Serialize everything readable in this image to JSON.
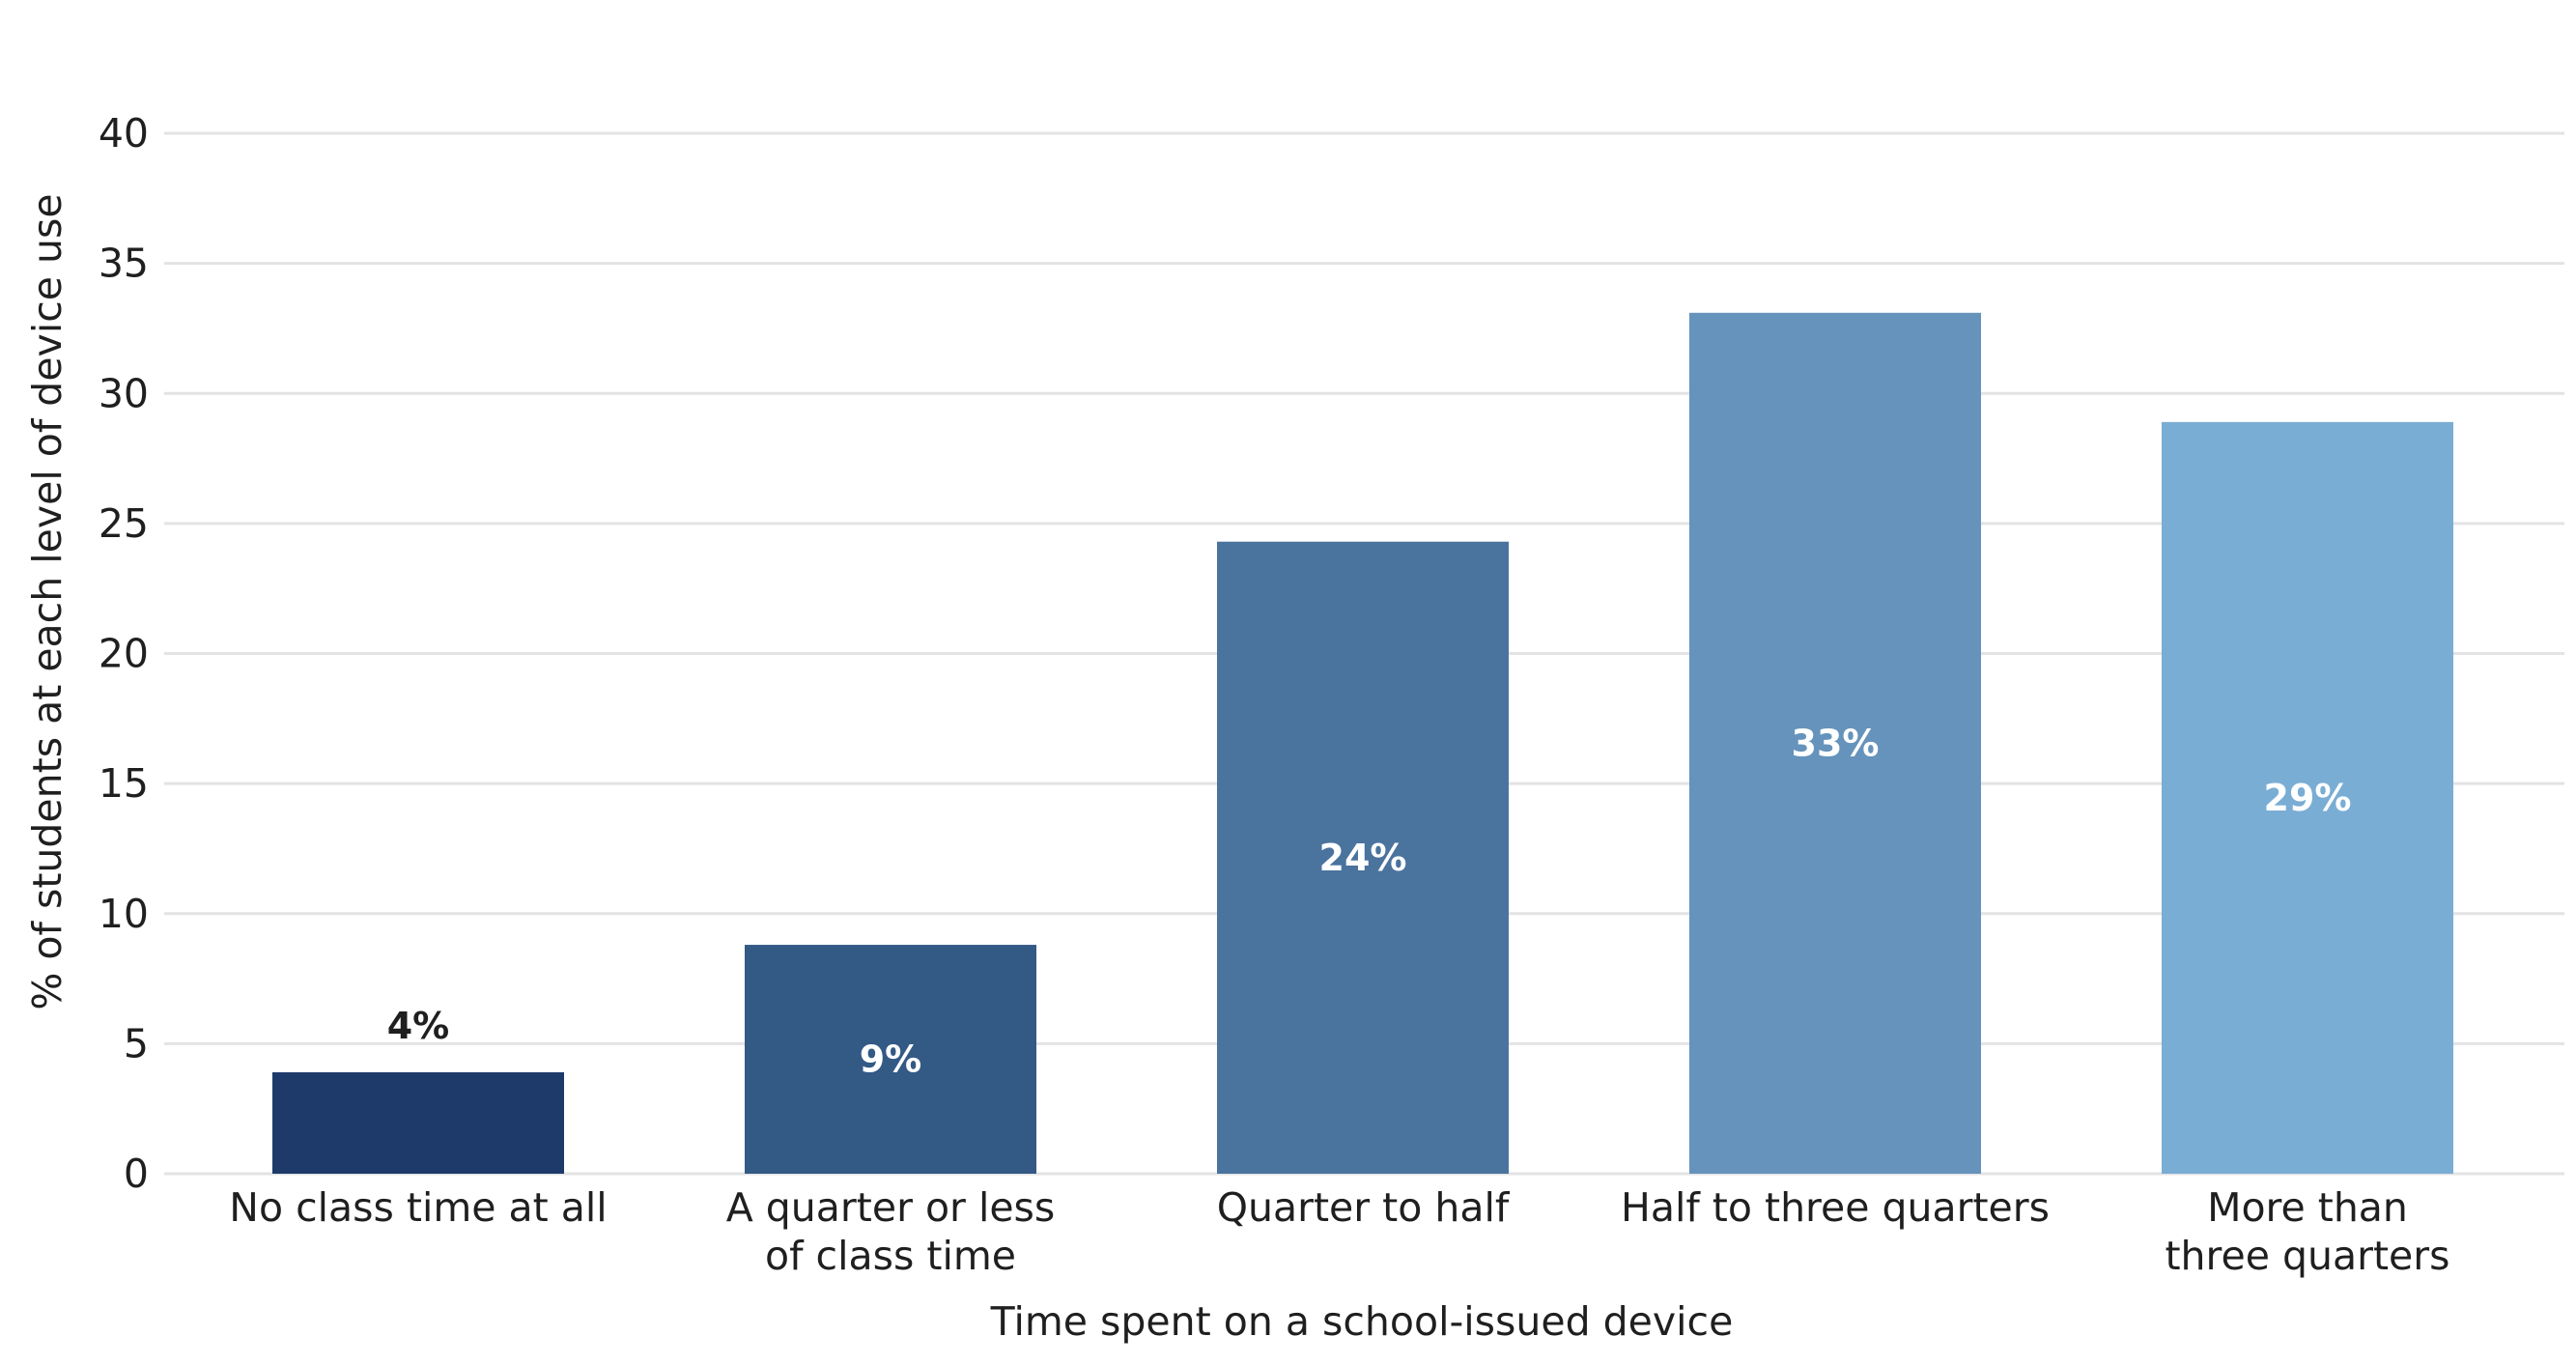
{
  "chart_data": {
    "type": "bar",
    "categories": [
      [
        "No class time at all"
      ],
      [
        "A quarter or less",
        "of class time"
      ],
      [
        "Quarter to half"
      ],
      [
        "Half to three quarters"
      ],
      [
        "More than",
        "three quarters"
      ]
    ],
    "values": [
      3.9,
      8.8,
      24.3,
      33.1,
      28.9
    ],
    "data_labels": [
      "4%",
      "9%",
      "24%",
      "33%",
      "29%"
    ],
    "bar_colors": [
      "#1e3a6b",
      "#335985",
      "#4a739e",
      "#6593bb",
      "#7aadd4"
    ],
    "data_label_colors": [
      "#1f1f1f",
      "#ffffff",
      "#ffffff",
      "#ffffff",
      "#ffffff"
    ],
    "data_label_position": [
      "above",
      "inside",
      "inside",
      "inside",
      "inside"
    ],
    "title": "",
    "xlabel": "Time spent on a school-issued device",
    "ylabel": "% of students at each level of device use",
    "ylim": [
      0,
      40
    ],
    "yticks": [
      0,
      5,
      10,
      15,
      20,
      25,
      30,
      35,
      40
    ],
    "grid": "horizontal",
    "legend": "none"
  }
}
